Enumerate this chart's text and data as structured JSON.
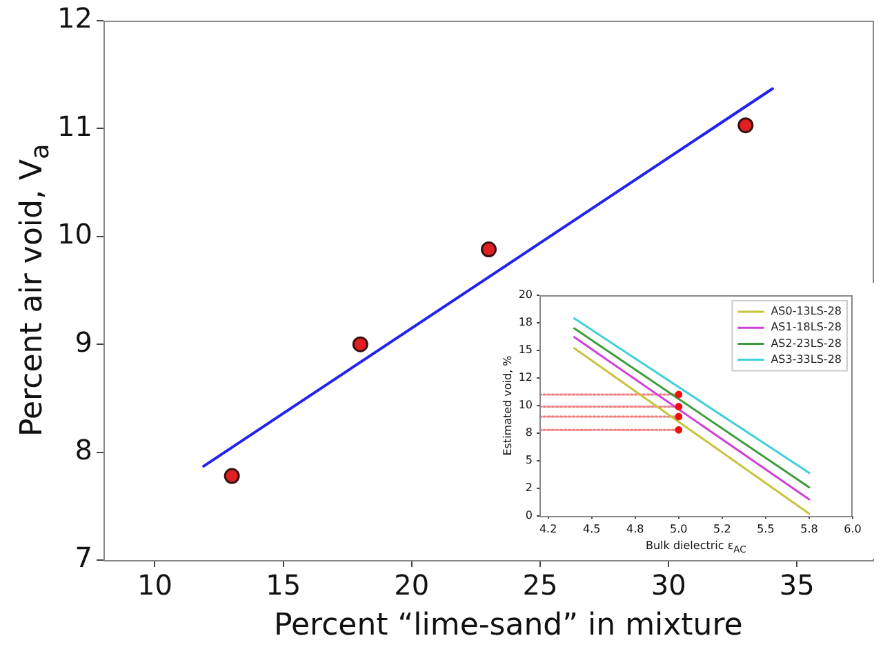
{
  "chart_data": [
    {
      "type": "scatter",
      "xlabel": "Percent “lime-sand” in mixture",
      "ylabel": "Percent air void, V$_{a}$",
      "xlim": [
        8,
        38
      ],
      "ylim": [
        7,
        12
      ],
      "xticks": [
        10,
        15,
        20,
        25,
        30,
        35
      ],
      "yticks": [
        7,
        8,
        9,
        10,
        11,
        12
      ],
      "grid": false,
      "legend": false,
      "marker": "circle",
      "series": [
        {
          "type": "line",
          "color": "#2222ee",
          "x": [
            11.9,
            34.05
          ],
          "values": [
            7.87,
            11.37
          ],
          "marker": "none"
        },
        {
          "color": "#e02020",
          "x": [
            13,
            18,
            23,
            33
          ],
          "values": [
            7.78,
            9.0,
            9.88,
            11.03
          ]
        }
      ]
    },
    {
      "type": "line",
      "xlabel": "Bulk dielectric ε$_{AC}$",
      "ylabel": "Estimated void, %",
      "xlim": [
        4.2,
        6.0
      ],
      "ylim": [
        0,
        20
      ],
      "xticks": [
        {
          "value": 4.25,
          "label": "4.2"
        },
        4.5,
        {
          "value": 4.75,
          "label": "4.8"
        },
        {
          "value": 5.0,
          "label": "5.0"
        },
        {
          "value": 5.25,
          "label": "5.2"
        },
        5.5,
        {
          "value": 5.75,
          "label": "5.8"
        },
        {
          "value": 6.0,
          "label": "6.0"
        }
      ],
      "yticks": [
        0,
        {
          "value": 2.5,
          "label": "2"
        },
        5,
        {
          "value": 7.5,
          "label": "8"
        },
        10,
        {
          "value": 12.5,
          "label": "12"
        },
        15,
        {
          "value": 17.5,
          "label": "18"
        },
        20
      ],
      "grid": false,
      "legend": "top right",
      "marker": "none",
      "series": [
        {
          "name": "AS0-13LS-28",
          "color": "#c8c43c",
          "x": [
            4.4,
            5.75
          ],
          "values": [
            15.2,
            0.2
          ]
        },
        {
          "name": "AS1-18LS-28",
          "color": "#d040d8",
          "x": [
            4.4,
            5.75
          ],
          "values": [
            16.2,
            1.5
          ]
        },
        {
          "name": "AS2-23LS-28",
          "color": "#3c9c3c",
          "x": [
            4.4,
            5.75
          ],
          "values": [
            17.0,
            2.6
          ]
        },
        {
          "name": "AS3-33LS-28",
          "color": "#40d0d8",
          "x": [
            4.4,
            5.75
          ],
          "values": [
            17.9,
            3.9
          ]
        },
        {
          "color": "#f08080",
          "line_style": "dotted",
          "x": [
            4.2,
            5.0
          ],
          "values": [
            7.8,
            7.8
          ]
        },
        {
          "color": "#f08080",
          "line_style": "dotted",
          "x": [
            4.2,
            5.0
          ],
          "values": [
            9.0,
            9.0
          ]
        },
        {
          "color": "#f08080",
          "line_style": "dotted",
          "x": [
            4.2,
            5.0
          ],
          "values": [
            9.9,
            9.9
          ]
        },
        {
          "color": "#f08080",
          "line_style": "dotted",
          "x": [
            4.2,
            5.0
          ],
          "values": [
            11.0,
            11.0
          ]
        },
        {
          "type": "scatter",
          "marker": "circle",
          "color": "#ee1010",
          "x": [
            5.0,
            5.0,
            5.0,
            5.0
          ],
          "values": [
            7.8,
            9.0,
            9.9,
            11.0
          ]
        }
      ]
    }
  ]
}
